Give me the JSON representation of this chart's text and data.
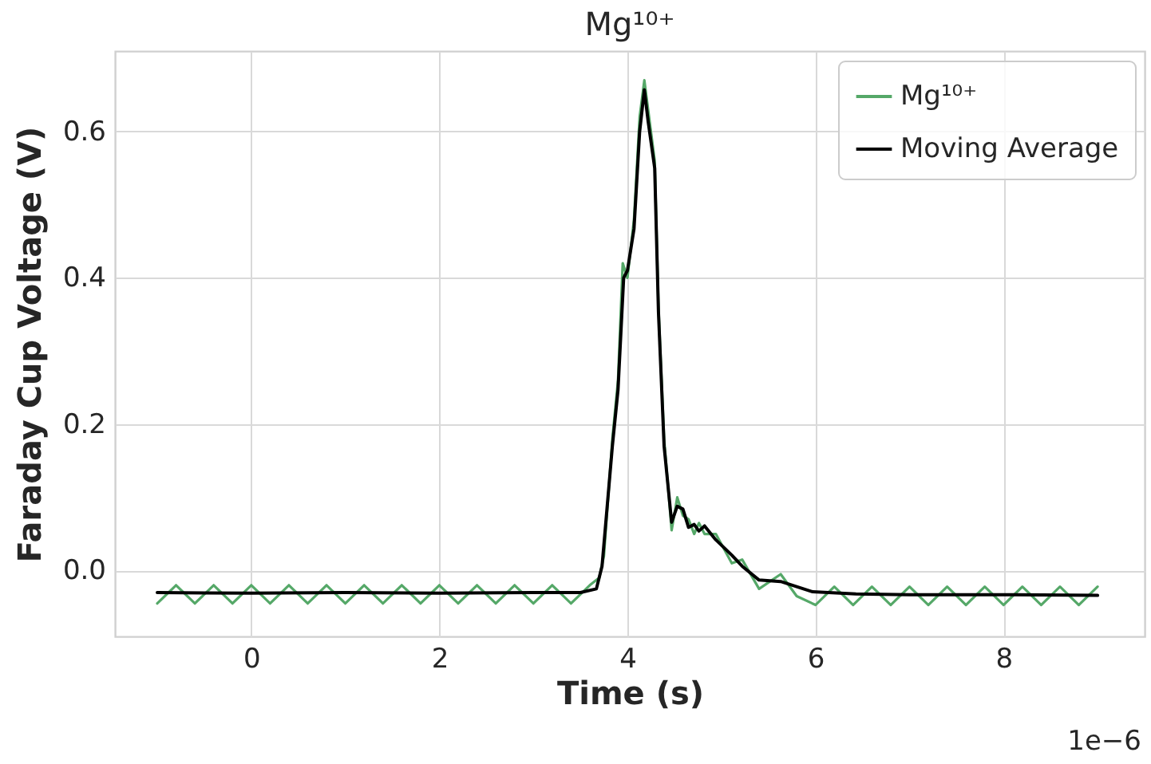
{
  "chart_data": {
    "type": "line",
    "title": "Mg¹⁰⁺",
    "xlabel": "Time (s)",
    "ylabel": "Faraday Cup Voltage (V)",
    "annotations": [
      "1e−6"
    ],
    "xlim": [
      -1.45,
      9.5
    ],
    "xticks": [
      0,
      2,
      4,
      6,
      8
    ],
    "ylim": [
      -0.09,
      0.71
    ],
    "yticks": [
      {
        "value": 0,
        "label": "0.0"
      },
      0.2,
      0.4,
      0.6
    ],
    "grid": true,
    "legend": "top right",
    "line_style": "solid",
    "marker": "none",
    "series": [
      {
        "name": "Mg¹⁰⁺",
        "color": "#55a868",
        "x": [
          -1,
          -0.8,
          -0.6,
          -0.4,
          -0.2,
          0,
          0.2,
          0.4,
          0.6,
          0.8,
          1,
          1.2,
          1.4,
          1.6,
          1.8,
          2,
          2.2,
          2.4,
          2.6,
          2.8,
          3,
          3.2,
          3.4,
          3.6,
          3.7,
          3.75,
          3.84,
          3.9,
          3.95,
          4,
          4.07,
          4.13,
          4.18,
          4.22,
          4.29,
          4.33,
          4.39,
          4.47,
          4.53,
          4.59,
          4.65,
          4.71,
          4.76,
          4.82,
          4.94,
          5.11,
          5.22,
          5.4,
          5.63,
          5.8,
          6,
          6.2,
          6.4,
          6.6,
          6.8,
          7,
          7.2,
          7.4,
          7.6,
          7.8,
          8,
          8.2,
          8.4,
          8.6,
          8.8,
          9
        ],
        "values": [
          -0.045,
          -0.02,
          -0.045,
          -0.02,
          -0.045,
          -0.02,
          -0.045,
          -0.02,
          -0.045,
          -0.02,
          -0.045,
          -0.02,
          -0.045,
          -0.02,
          -0.045,
          -0.02,
          -0.045,
          -0.02,
          -0.045,
          -0.02,
          -0.045,
          -0.02,
          -0.045,
          -0.02,
          -0.01,
          0.02,
          0.18,
          0.26,
          0.42,
          0.4,
          0.48,
          0.62,
          0.67,
          0.63,
          0.56,
          0.36,
          0.18,
          0.055,
          0.1,
          0.075,
          0.07,
          0.05,
          0.065,
          0.05,
          0.05,
          0.01,
          0.015,
          -0.025,
          -0.005,
          -0.035,
          -0.047,
          -0.022,
          -0.047,
          -0.022,
          -0.047,
          -0.022,
          -0.047,
          -0.022,
          -0.047,
          -0.022,
          -0.047,
          -0.022,
          -0.047,
          -0.022,
          -0.047,
          -0.022
        ]
      },
      {
        "name": "Moving Average",
        "color": "#000000",
        "x": [
          -1,
          0,
          1,
          2,
          3,
          3.5,
          3.67,
          3.73,
          3.84,
          3.9,
          3.96,
          4,
          4.07,
          4.13,
          4.18,
          4.22,
          4.29,
          4.33,
          4.39,
          4.47,
          4.53,
          4.59,
          4.65,
          4.71,
          4.76,
          4.82,
          4.94,
          5.11,
          5.22,
          5.4,
          5.63,
          5.97,
          6.43,
          7,
          8,
          9
        ],
        "values": [
          -0.03,
          -0.031,
          -0.03,
          -0.031,
          -0.03,
          -0.03,
          -0.025,
          0.006,
          0.17,
          0.247,
          0.4,
          0.41,
          0.467,
          0.6,
          0.657,
          0.614,
          0.55,
          0.353,
          0.17,
          0.066,
          0.088,
          0.084,
          0.059,
          0.063,
          0.054,
          0.061,
          0.042,
          0.021,
          0.006,
          -0.013,
          -0.015,
          -0.029,
          -0.032,
          -0.033,
          -0.033,
          -0.034
        ]
      }
    ]
  }
}
